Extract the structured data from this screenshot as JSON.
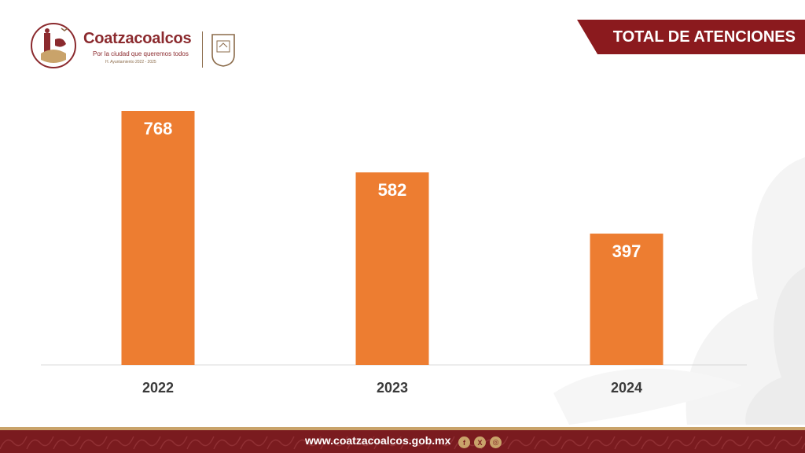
{
  "header": {
    "logo_name": "Coatzacoalcos",
    "logo_tagline": "Por la ciudad que queremos todos",
    "logo_admin": "H. Ayuntamiento 2022 - 2025",
    "title": "TOTAL DE ATENCIONES"
  },
  "chart_data": {
    "type": "bar",
    "categories": [
      "2022",
      "2023",
      "2024"
    ],
    "values": [
      768,
      582,
      397
    ],
    "ylim": [
      0,
      768
    ],
    "bar_color": "#ed7d31",
    "grid": false,
    "legend": "none"
  },
  "footer": {
    "url": "www.coatzacoalcos.gob.mx",
    "social_icons": [
      "facebook-icon",
      "x-icon",
      "instagram-icon"
    ]
  },
  "colors": {
    "brand_maroon": "#8b1a1e",
    "accent_gold": "#c9a36a",
    "bar_orange": "#ed7d31"
  }
}
